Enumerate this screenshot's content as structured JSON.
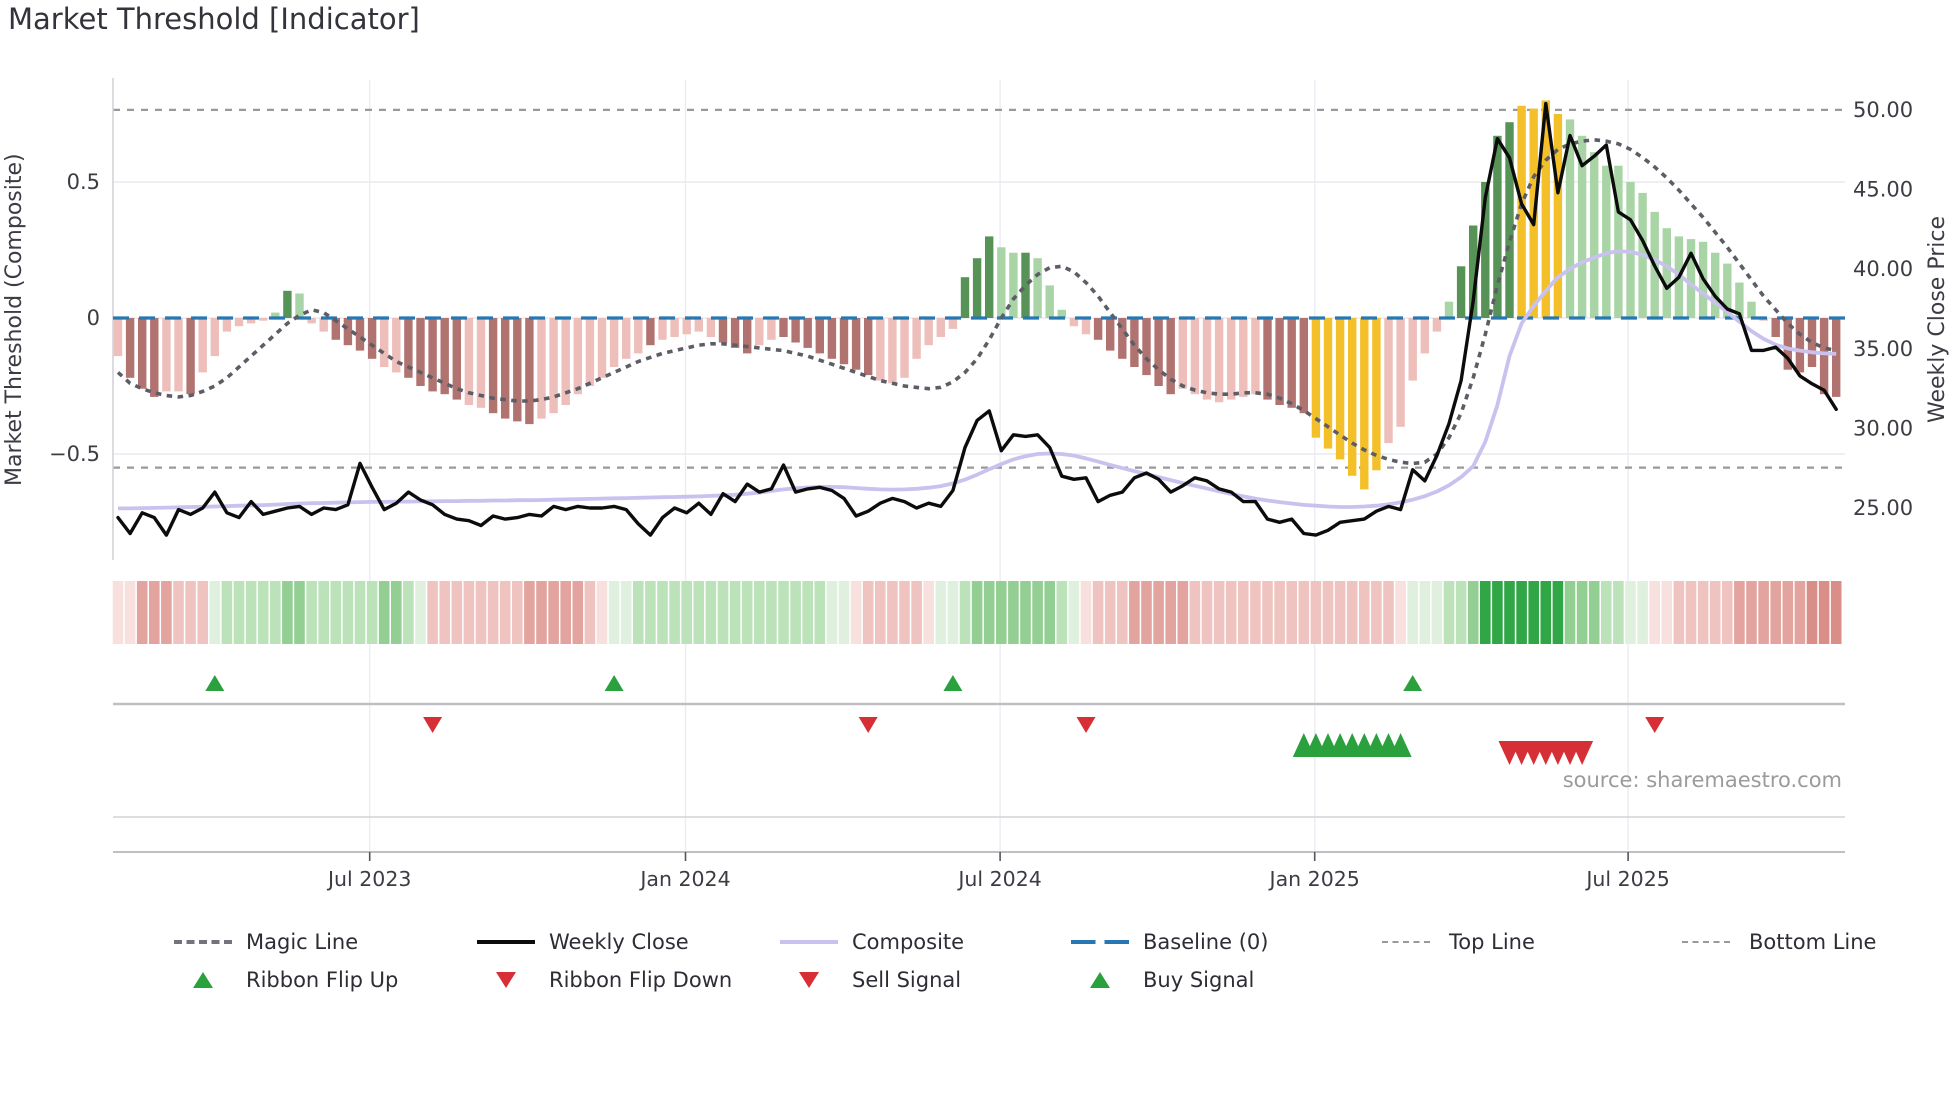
{
  "title": "Market Threshold [Indicator]",
  "source": "source: sharemaestro.com",
  "axes": {
    "left_title": "Market Threshold (Composite)",
    "right_title": "Weekly Close Price"
  },
  "legend": {
    "magic_line": "Magic Line",
    "weekly_close": "Weekly Close",
    "composite": "Composite",
    "baseline": "Baseline (0)",
    "top_line": "Top Line",
    "bottom_line": "Bottom Line",
    "ribbon_flip_up": "Ribbon Flip Up",
    "ribbon_flip_down": "Ribbon Flip Down",
    "sell_signal": "Sell Signal",
    "buy_signal": "Buy Signal"
  },
  "chart_data": {
    "type": "combo",
    "title": "Market Threshold [Indicator]",
    "x_axis": {
      "tick_labels": [
        "Jul 2023",
        "Jan 2024",
        "Jul 2024",
        "Jan 2025",
        "Jul 2025"
      ],
      "tick_weeks": [
        20.8,
        46.9,
        72.9,
        98.9,
        124.8
      ],
      "weeks_total": 143,
      "start": "Feb 2023",
      "end": "Nov 2025"
    },
    "left_axis": {
      "title": "Market Threshold (Composite)",
      "ticks": [
        {
          "value": 0.5,
          "label": "0.5"
        },
        {
          "value": 0,
          "label": "0"
        },
        {
          "value": -0.5,
          "label": "−0.5"
        }
      ],
      "range": [
        -0.89,
        0.88
      ],
      "grid": true
    },
    "right_axis": {
      "title": "Weekly Close Price",
      "ticks": [
        {
          "price": 50,
          "label": "50.00"
        },
        {
          "price": 45,
          "label": "45.00"
        },
        {
          "price": 40,
          "label": "40.00"
        },
        {
          "price": 35,
          "label": "35.00"
        },
        {
          "price": 30,
          "label": "30.00"
        },
        {
          "price": 25,
          "label": "25.00"
        }
      ],
      "range": [
        21.7,
        51.9
      ]
    },
    "reference_lines": {
      "baseline": 0,
      "top_line": 0.765,
      "bottom_line": -0.55
    },
    "series": {
      "composite_bars": {
        "values": [
          -0.14,
          -0.22,
          -0.26,
          -0.29,
          -0.27,
          -0.27,
          -0.28,
          -0.2,
          -0.14,
          -0.05,
          -0.03,
          -0.02,
          -0.01,
          0.02,
          0.1,
          0.09,
          -0.02,
          -0.05,
          -0.08,
          -0.1,
          -0.12,
          -0.15,
          -0.18,
          -0.2,
          -0.22,
          -0.25,
          -0.27,
          -0.28,
          -0.3,
          -0.32,
          -0.33,
          -0.35,
          -0.37,
          -0.38,
          -0.39,
          -0.37,
          -0.35,
          -0.32,
          -0.28,
          -0.25,
          -0.22,
          -0.18,
          -0.15,
          -0.13,
          -0.1,
          -0.08,
          -0.07,
          -0.06,
          -0.05,
          -0.07,
          -0.09,
          -0.11,
          -0.13,
          -0.1,
          -0.08,
          -0.07,
          -0.09,
          -0.11,
          -0.13,
          -0.15,
          -0.17,
          -0.19,
          -0.21,
          -0.23,
          -0.24,
          -0.22,
          -0.15,
          -0.1,
          -0.07,
          -0.04,
          0.15,
          0.22,
          0.3,
          0.26,
          0.24,
          0.24,
          0.22,
          0.12,
          0.03,
          -0.03,
          -0.06,
          -0.08,
          -0.12,
          -0.15,
          -0.18,
          -0.21,
          -0.25,
          -0.28,
          -0.26,
          -0.28,
          -0.3,
          -0.31,
          -0.3,
          -0.29,
          -0.28,
          -0.3,
          -0.32,
          -0.33,
          -0.35,
          -0.44,
          -0.48,
          -0.52,
          -0.58,
          -0.63,
          -0.56,
          -0.46,
          -0.4,
          -0.23,
          -0.13,
          -0.05,
          0.06,
          0.19,
          0.34,
          0.5,
          0.67,
          0.72,
          0.78,
          0.77,
          0.8,
          0.75,
          0.73,
          0.67,
          0.61,
          0.56,
          0.56,
          0.5,
          0.46,
          0.39,
          0.33,
          0.3,
          0.29,
          0.28,
          0.24,
          0.2,
          0.13,
          0.06,
          -0.01,
          -0.07,
          -0.19,
          -0.2,
          -0.18,
          -0.28,
          -0.29
        ],
        "colors": [
          "P",
          "M",
          "M",
          "M",
          "P",
          "P",
          "M",
          "P",
          "P",
          "P",
          "P",
          "P",
          "P",
          "G",
          "D",
          "G",
          "P",
          "P",
          "M",
          "M",
          "M",
          "M",
          "P",
          "P",
          "M",
          "M",
          "M",
          "M",
          "M",
          "P",
          "P",
          "M",
          "M",
          "M",
          "M",
          "P",
          "P",
          "P",
          "P",
          "P",
          "P",
          "P",
          "P",
          "P",
          "M",
          "P",
          "P",
          "P",
          "P",
          "P",
          "M",
          "M",
          "M",
          "P",
          "P",
          "M",
          "M",
          "M",
          "M",
          "M",
          "M",
          "M",
          "M",
          "P",
          "P",
          "P",
          "P",
          "P",
          "P",
          "P",
          "D",
          "D",
          "D",
          "G",
          "G",
          "D",
          "G",
          "G",
          "G",
          "P",
          "P",
          "M",
          "M",
          "M",
          "M",
          "M",
          "M",
          "M",
          "P",
          "P",
          "P",
          "P",
          "P",
          "P",
          "P",
          "M",
          "M",
          "M",
          "M",
          "Y",
          "Y",
          "Y",
          "Y",
          "Y",
          "Y",
          "P",
          "P",
          "P",
          "P",
          "P",
          "G",
          "D",
          "D",
          "D",
          "D",
          "D",
          "Y",
          "Y",
          "Y",
          "Y",
          "G",
          "G",
          "G",
          "G",
          "G",
          "G",
          "G",
          "G",
          "G",
          "G",
          "G",
          "G",
          "G",
          "G",
          "G",
          "G",
          "P",
          "M",
          "M",
          "M",
          "M",
          "M",
          "M"
        ]
      },
      "magic_line": [
        -0.2,
        -0.24,
        -0.26,
        -0.275,
        -0.285,
        -0.29,
        -0.285,
        -0.27,
        -0.25,
        -0.22,
        -0.18,
        -0.14,
        -0.1,
        -0.06,
        -0.02,
        0.01,
        0.03,
        0.02,
        -0.01,
        -0.04,
        -0.07,
        -0.1,
        -0.13,
        -0.16,
        -0.18,
        -0.2,
        -0.22,
        -0.24,
        -0.26,
        -0.275,
        -0.285,
        -0.295,
        -0.3,
        -0.305,
        -0.305,
        -0.3,
        -0.29,
        -0.275,
        -0.26,
        -0.24,
        -0.22,
        -0.2,
        -0.18,
        -0.16,
        -0.145,
        -0.13,
        -0.12,
        -0.11,
        -0.1,
        -0.095,
        -0.095,
        -0.1,
        -0.105,
        -0.11,
        -0.115,
        -0.12,
        -0.13,
        -0.14,
        -0.155,
        -0.17,
        -0.185,
        -0.2,
        -0.215,
        -0.23,
        -0.24,
        -0.25,
        -0.255,
        -0.26,
        -0.255,
        -0.235,
        -0.2,
        -0.15,
        -0.08,
        0.0,
        0.07,
        0.12,
        0.16,
        0.185,
        0.19,
        0.17,
        0.13,
        0.08,
        0.02,
        -0.04,
        -0.1,
        -0.15,
        -0.19,
        -0.225,
        -0.25,
        -0.265,
        -0.275,
        -0.28,
        -0.28,
        -0.275,
        -0.275,
        -0.28,
        -0.295,
        -0.315,
        -0.34,
        -0.37,
        -0.4,
        -0.43,
        -0.46,
        -0.485,
        -0.505,
        -0.52,
        -0.53,
        -0.535,
        -0.53,
        -0.5,
        -0.44,
        -0.35,
        -0.22,
        -0.06,
        0.12,
        0.28,
        0.42,
        0.52,
        0.58,
        0.62,
        0.64,
        0.65,
        0.655,
        0.65,
        0.64,
        0.62,
        0.59,
        0.555,
        0.515,
        0.47,
        0.42,
        0.37,
        0.315,
        0.26,
        0.2,
        0.14,
        0.08,
        0.03,
        -0.02,
        -0.06,
        -0.09,
        -0.11,
        -0.12
      ],
      "composite_line": [
        -0.7,
        -0.7,
        -0.699,
        -0.698,
        -0.697,
        -0.696,
        -0.695,
        -0.694,
        -0.693,
        -0.692,
        -0.69,
        -0.689,
        -0.688,
        -0.686,
        -0.684,
        -0.682,
        -0.681,
        -0.68,
        -0.679,
        -0.678,
        -0.677,
        -0.676,
        -0.676,
        -0.675,
        -0.675,
        -0.674,
        -0.674,
        -0.673,
        -0.673,
        -0.672,
        -0.672,
        -0.671,
        -0.671,
        -0.67,
        -0.67,
        -0.669,
        -0.668,
        -0.667,
        -0.666,
        -0.665,
        -0.664,
        -0.663,
        -0.662,
        -0.661,
        -0.66,
        -0.659,
        -0.658,
        -0.657,
        -0.656,
        -0.654,
        -0.652,
        -0.65,
        -0.646,
        -0.642,
        -0.636,
        -0.63,
        -0.626,
        -0.623,
        -0.621,
        -0.621,
        -0.622,
        -0.625,
        -0.628,
        -0.63,
        -0.631,
        -0.63,
        -0.628,
        -0.624,
        -0.618,
        -0.608,
        -0.594,
        -0.576,
        -0.556,
        -0.537,
        -0.52,
        -0.508,
        -0.5,
        -0.498,
        -0.5,
        -0.506,
        -0.516,
        -0.528,
        -0.54,
        -0.552,
        -0.563,
        -0.574,
        -0.585,
        -0.596,
        -0.607,
        -0.617,
        -0.627,
        -0.637,
        -0.647,
        -0.656,
        -0.664,
        -0.671,
        -0.677,
        -0.682,
        -0.687,
        -0.69,
        -0.693,
        -0.695,
        -0.695,
        -0.693,
        -0.69,
        -0.685,
        -0.678,
        -0.668,
        -0.655,
        -0.638,
        -0.615,
        -0.585,
        -0.545,
        -0.455,
        -0.32,
        -0.14,
        -0.02,
        0.045,
        0.1,
        0.15,
        0.18,
        0.205,
        0.222,
        0.238,
        0.246,
        0.243,
        0.232,
        0.214,
        0.19,
        0.16,
        0.123,
        0.09,
        0.056,
        0.022,
        -0.014,
        -0.048,
        -0.077,
        -0.098,
        -0.112,
        -0.12,
        -0.126,
        -0.13,
        -0.132
      ],
      "weekly_close": [
        24.4,
        23.4,
        24.7,
        24.4,
        23.3,
        24.9,
        24.6,
        25.0,
        26.0,
        24.7,
        24.4,
        25.4,
        24.6,
        24.8,
        25.0,
        25.1,
        24.6,
        25.0,
        24.9,
        25.2,
        27.8,
        26.3,
        24.9,
        25.3,
        26.0,
        25.5,
        25.2,
        24.6,
        24.3,
        24.2,
        23.9,
        24.5,
        24.3,
        24.4,
        24.6,
        24.5,
        25.1,
        24.9,
        25.1,
        25.0,
        25.0,
        25.1,
        24.9,
        24.0,
        23.3,
        24.4,
        25.0,
        24.7,
        25.3,
        24.6,
        25.9,
        25.4,
        26.5,
        26.0,
        26.2,
        27.7,
        26.0,
        26.2,
        26.3,
        26.1,
        25.6,
        24.5,
        24.8,
        25.3,
        25.6,
        25.4,
        25.0,
        25.3,
        25.1,
        26.1,
        28.8,
        30.5,
        31.1,
        28.6,
        29.6,
        29.5,
        29.6,
        28.8,
        27.0,
        26.8,
        26.9,
        25.4,
        25.8,
        26.0,
        26.9,
        27.2,
        26.8,
        26.0,
        26.4,
        26.9,
        26.7,
        26.2,
        26.0,
        25.4,
        25.4,
        24.3,
        24.1,
        24.3,
        23.4,
        23.3,
        23.6,
        24.1,
        24.2,
        24.3,
        24.8,
        25.1,
        24.9,
        27.4,
        26.7,
        28.3,
        30.3,
        33.0,
        38.0,
        44.5,
        48.2,
        47.0,
        44.1,
        42.8,
        50.4,
        44.8,
        48.4,
        46.5,
        47.1,
        47.8,
        43.6,
        43.1,
        41.8,
        40.2,
        38.8,
        39.5,
        41.0,
        39.4,
        38.3,
        37.5,
        37.2,
        34.9,
        34.9,
        35.1,
        34.4,
        33.3,
        32.8,
        32.4,
        31.2
      ]
    },
    "ribbon": [
      "p1",
      "p1",
      "p3",
      "p3",
      "p3",
      "p2",
      "p2",
      "p2",
      "g1",
      "g2",
      "g2",
      "g2",
      "g2",
      "g2",
      "g3",
      "g3",
      "g2",
      "g2",
      "g2",
      "g2",
      "g2",
      "g2",
      "g3",
      "g3",
      "g2",
      "g1",
      "p2",
      "p2",
      "p2",
      "p2",
      "p2",
      "p2",
      "p2",
      "p2",
      "p3",
      "p3",
      "p3",
      "p3",
      "p3",
      "p2",
      "p1",
      "g1",
      "g1",
      "g2",
      "g2",
      "g2",
      "g2",
      "g2",
      "g2",
      "g2",
      "g2",
      "g2",
      "g2",
      "g2",
      "g2",
      "g2",
      "g2",
      "g2",
      "g2",
      "g1",
      "g1",
      "p1",
      "p2",
      "p2",
      "p2",
      "p2",
      "p2",
      "p1",
      "g1",
      "g1",
      "g2",
      "g3",
      "g3",
      "g3",
      "g3",
      "g3",
      "g3",
      "g3",
      "g2",
      "g1",
      "p1",
      "p2",
      "p2",
      "p2",
      "p3",
      "p3",
      "p3",
      "p3",
      "p3",
      "p2",
      "p2",
      "p2",
      "p2",
      "p2",
      "p2",
      "p2",
      "p2",
      "p2",
      "p2",
      "p2",
      "p2",
      "p2",
      "p2",
      "p2",
      "p2",
      "p2",
      "p1",
      "g1",
      "g1",
      "g1",
      "g2",
      "g2",
      "g3",
      "g4",
      "g4",
      "g4",
      "g4",
      "g4",
      "g4",
      "g4",
      "g3",
      "g3",
      "g3",
      "g2",
      "g2",
      "g1",
      "g1",
      "p1",
      "p1",
      "p2",
      "p2",
      "p2",
      "p2",
      "p2",
      "p3",
      "p3",
      "p3",
      "p3",
      "p3",
      "p3",
      "p4",
      "p4",
      "p4"
    ],
    "signals": {
      "ribbon_flip_up_weeks": [
        8,
        41,
        69,
        107
      ],
      "ribbon_flip_down_weeks": [
        26,
        62,
        80,
        127
      ],
      "buy_signal_weeks": [
        98,
        99,
        100,
        101,
        102,
        103,
        104,
        105,
        106
      ],
      "sell_signal_weeks": [
        115,
        116,
        117,
        118,
        119,
        120,
        121
      ]
    },
    "colors": {
      "bar": {
        "P": "#edbeba",
        "M": "#b17370",
        "G": "#a9d4a5",
        "D": "#579257",
        "Y": "#f4c02a"
      },
      "ribbon": {
        "p1": "#f7e0de",
        "p2": "#efc4c0",
        "p3": "#e3a49f",
        "p4": "#d98e87",
        "g1": "#dff1de",
        "g2": "#bce2ba",
        "g3": "#93ce92",
        "g4": "#31a646"
      },
      "magic_line": "#5d5d66",
      "weekly_close": "#0c0c0c",
      "composite_line": "#c9c2ee",
      "baseline": "#2677b2",
      "top_bottom_line": "#98989e",
      "signal_green": "#2aa13c",
      "signal_red": "#d72f36",
      "grid": "#ececf2",
      "tick_text": "#3c3c44"
    }
  }
}
